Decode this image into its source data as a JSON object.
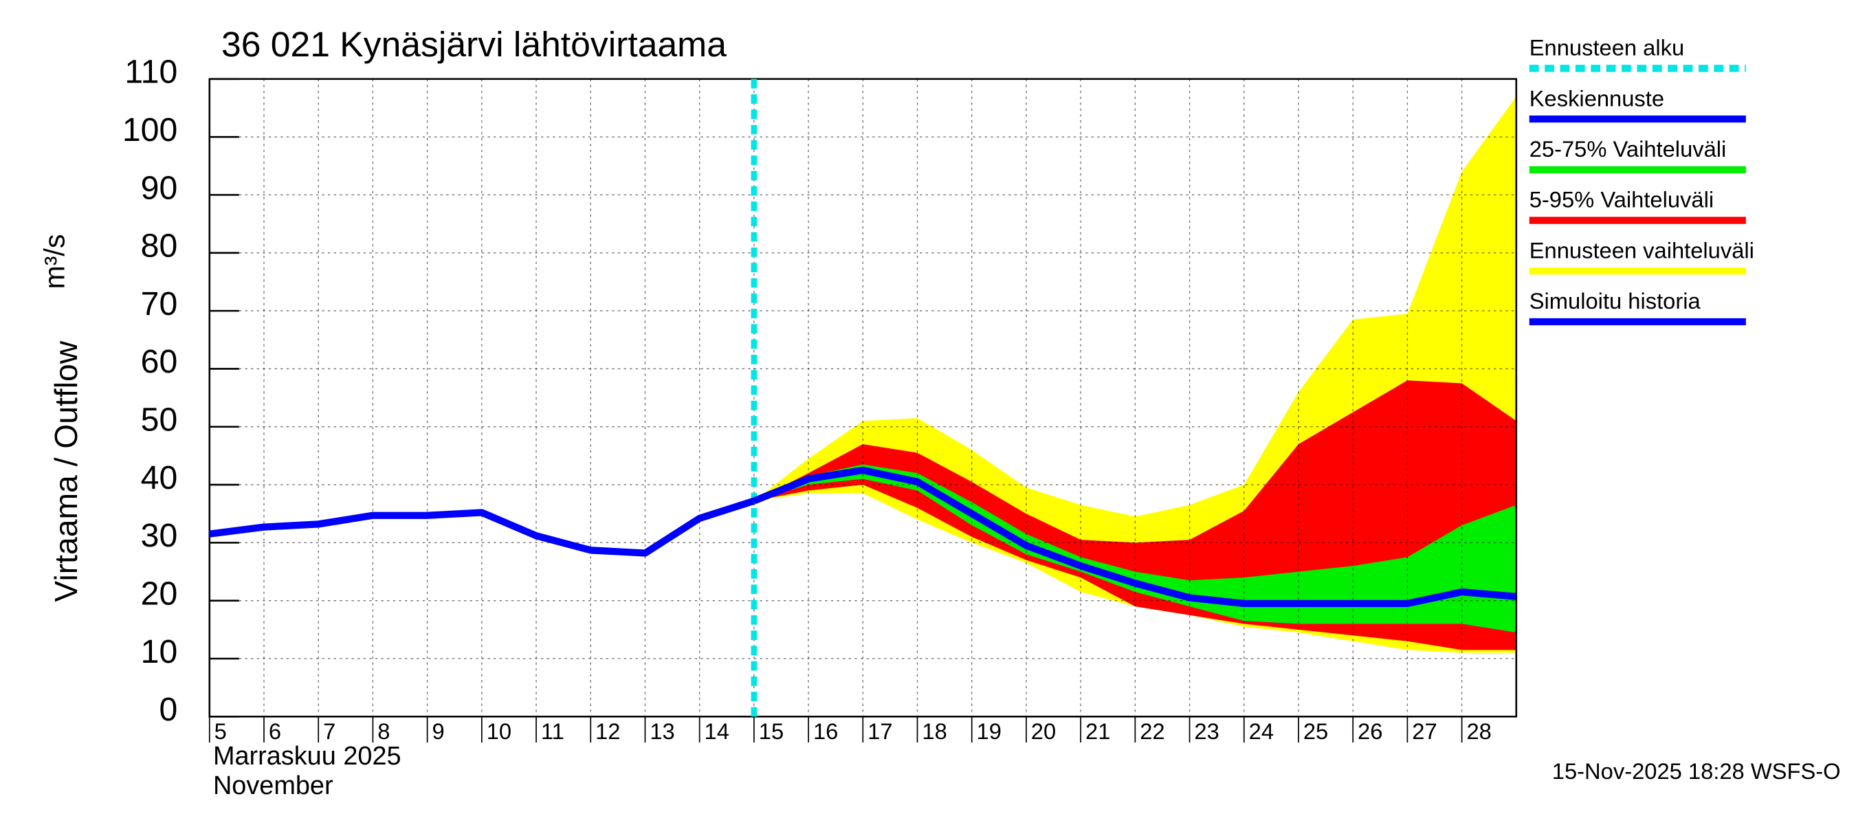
{
  "chart_data": {
    "type": "line",
    "title": "36 021 Kynäsjärvi lähtövirtaama",
    "y_label": "Virtaama / Outflow",
    "y_unit": "m³/s",
    "x_label": "Marraskuu 2025",
    "x_label_en": "November",
    "footer": "15-Nov-2025 18:28 WSFS-O",
    "xlim": [
      5,
      29
    ],
    "xticks": [
      5,
      6,
      7,
      8,
      9,
      10,
      11,
      12,
      13,
      14,
      15,
      16,
      17,
      18,
      19,
      20,
      21,
      22,
      23,
      24,
      25,
      26,
      27,
      28
    ],
    "ylim": [
      0,
      110
    ],
    "yticks": [
      0,
      10,
      20,
      30,
      40,
      50,
      60,
      70,
      80,
      90,
      100,
      110
    ],
    "grid": true,
    "forecast_start": {
      "name": "Ennusteen alku",
      "color": "#00e5e5",
      "x": 15
    },
    "bands": [
      {
        "name": "Ennusteen vaihteluväli",
        "color": "#ffff00",
        "x": [
          15,
          16,
          17,
          18,
          19,
          20,
          21,
          22,
          23,
          24,
          25,
          26,
          27,
          28,
          29
        ],
        "upper": [
          37.2,
          44.5,
          51,
          51.5,
          46,
          39.5,
          36.5,
          34.5,
          36.5,
          40,
          56,
          68.5,
          69.5,
          94,
          107
        ],
        "lower": [
          37.2,
          38.5,
          38.5,
          34,
          30,
          26.5,
          21.5,
          19,
          17.5,
          15.5,
          14.5,
          13,
          11.5,
          11,
          11
        ]
      },
      {
        "name": "5-95% Vaihteluväli",
        "color": "#ff0000",
        "x": [
          15,
          16,
          17,
          18,
          19,
          20,
          21,
          22,
          23,
          24,
          25,
          26,
          27,
          28,
          29
        ],
        "upper": [
          37.2,
          42,
          47,
          45.5,
          40.5,
          35,
          30.5,
          30,
          30.5,
          35.5,
          47,
          52.5,
          58,
          57.5,
          51
        ],
        "lower": [
          37.2,
          39,
          40,
          36,
          31,
          27,
          24,
          19,
          17.5,
          16,
          15,
          14,
          13,
          11.5,
          11.5
        ]
      },
      {
        "name": "25-75% Vaihteluväli",
        "color": "#00ee00",
        "x": [
          15,
          16,
          17,
          18,
          19,
          20,
          21,
          22,
          23,
          24,
          25,
          26,
          27,
          28,
          29
        ],
        "upper": [
          37.2,
          41.5,
          43.5,
          42,
          37,
          31.5,
          27.5,
          25,
          23.5,
          24,
          25,
          26,
          27.5,
          33,
          36.5
        ],
        "lower": [
          37.2,
          40,
          41,
          39,
          33,
          28,
          25,
          21.5,
          19,
          16.5,
          16,
          16,
          16,
          16,
          14.5
        ]
      }
    ],
    "series": [
      {
        "name": "Simuloitu historia",
        "color": "#0000ff",
        "x": [
          5,
          6,
          7,
          8,
          9,
          10,
          11,
          12,
          13,
          14,
          15
        ],
        "values": [
          31.5,
          32.7,
          33.2,
          34.7,
          34.7,
          35.2,
          31.2,
          28.7,
          28.2,
          34.2,
          37.2
        ]
      },
      {
        "name": "Keskiennuste",
        "color": "#0000ff",
        "x": [
          15,
          16,
          17,
          18,
          19,
          20,
          21,
          22,
          23,
          24,
          25,
          26,
          27,
          28,
          29
        ],
        "values": [
          37.2,
          41,
          42.5,
          40.5,
          35,
          29.5,
          26,
          23,
          20.5,
          19.5,
          19.5,
          19.5,
          19.5,
          21.5,
          20.7
        ]
      }
    ]
  }
}
